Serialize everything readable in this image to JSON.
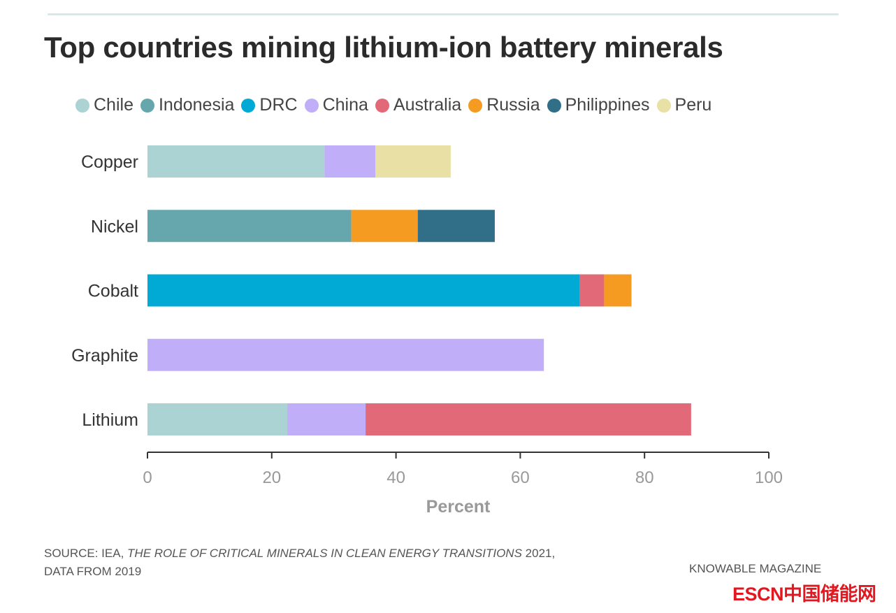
{
  "chart_data": {
    "type": "bar",
    "orientation": "horizontal",
    "stacked": true,
    "title": "Top countries mining lithium-ion battery minerals",
    "xlabel": "Percent",
    "ylabel": "",
    "xlim": [
      0,
      100
    ],
    "xticks": [
      "0",
      "20",
      "40",
      "60",
      "80",
      "100"
    ],
    "categories": [
      "Copper",
      "Nickel",
      "Cobalt",
      "Graphite",
      "Lithium"
    ],
    "legend_position": "top",
    "series": [
      {
        "name": "Chile",
        "color": "#abd3d4",
        "values": [
          28.5,
          0,
          0,
          0,
          22.5
        ]
      },
      {
        "name": "Indonesia",
        "color": "#66a7ae",
        "values": [
          0,
          32.8,
          0,
          0,
          0
        ]
      },
      {
        "name": "DRC",
        "color": "#00aad5",
        "values": [
          0,
          0,
          69.6,
          0,
          0
        ]
      },
      {
        "name": "China",
        "color": "#c1aef8",
        "values": [
          8.2,
          0,
          0,
          63.8,
          12.6
        ]
      },
      {
        "name": "Australia",
        "color": "#e26a78",
        "values": [
          0,
          0,
          3.9,
          0,
          52.4
        ]
      },
      {
        "name": "Russia",
        "color": "#f59b22",
        "values": [
          0,
          10.7,
          4.4,
          0,
          0
        ]
      },
      {
        "name": "Philippines",
        "color": "#316f88",
        "values": [
          0,
          12.4,
          0,
          0,
          0
        ]
      },
      {
        "name": "Peru",
        "color": "#e9e0a6",
        "values": [
          12.1,
          0,
          0,
          0,
          0
        ]
      }
    ]
  },
  "source": {
    "prefix": "SOURCE: IEA, ",
    "italic": "THE ROLE OF CRITICAL MINERALS IN CLEAN ENERGY TRANSITIONS",
    "suffix": " 2021,",
    "line2": "DATA FROM 2019"
  },
  "credit": "KNOWABLE MAGAZINE",
  "watermark": "ESCN中国储能网"
}
